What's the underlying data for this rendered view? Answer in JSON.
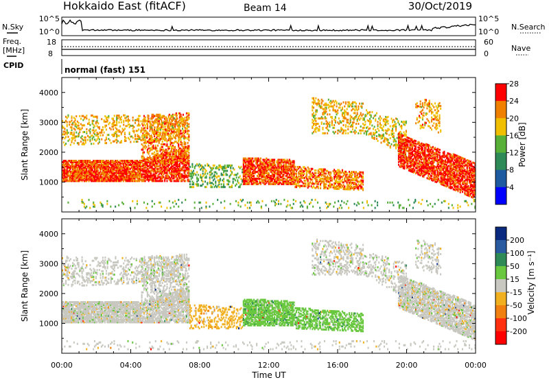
{
  "header": {
    "title": "Hokkaido East (fitACF)",
    "beam": "Beam 14",
    "date": "30/Oct/2019"
  },
  "noise_panel": {
    "left_label": "N.Sky",
    "right_label": "N.Search",
    "ticks": [
      "10^5",
      "10^0"
    ]
  },
  "freq_panel": {
    "left_label_line1": "Freq.",
    "left_label_line2": "[MHz]",
    "left_ticks": [
      "18",
      "8"
    ],
    "right_label": "Nave",
    "right_ticks": [
      "60",
      "0"
    ]
  },
  "cpid_panel": {
    "label": "CPID",
    "text": "normal (fast) 151"
  },
  "chart_data": [
    {
      "type": "heatmap",
      "name": "power",
      "ylabel": "Slant Range [km]",
      "ylim": [
        0,
        4500
      ],
      "yticks": [
        "1000",
        "2000",
        "3000",
        "4000"
      ],
      "colorbar_label": "Power [dB]",
      "colorbar_ticks": [
        "4",
        "8",
        "12",
        "16",
        "20",
        "24",
        "28"
      ],
      "colors": [
        "#0000ff",
        "#1e5aa0",
        "#2e8b57",
        "#58b038",
        "#f0c000",
        "#f08000",
        "#ff0000"
      ]
    },
    {
      "type": "heatmap",
      "name": "velocity",
      "ylabel": "Slant Range [km]",
      "ylim": [
        0,
        4500
      ],
      "yticks": [
        "1000",
        "2000",
        "3000",
        "4000"
      ],
      "colorbar_label": "Velocity [m s⁻¹]",
      "colorbar_ticks": [
        "200",
        "100",
        "50",
        "15",
        "-15",
        "-50",
        "-100",
        "-200"
      ],
      "colors": [
        "#0a2a80",
        "#2a5aa0",
        "#2e8b57",
        "#6ac840",
        "#c8c8c0",
        "#f0b020",
        "#f08010",
        "#ff3010",
        "#ff0000"
      ]
    }
  ],
  "x_axis": {
    "ticks": [
      "00:00",
      "04:00",
      "08:00",
      "12:00",
      "16:00",
      "20:00",
      "00:00"
    ],
    "label": "Time UT"
  }
}
